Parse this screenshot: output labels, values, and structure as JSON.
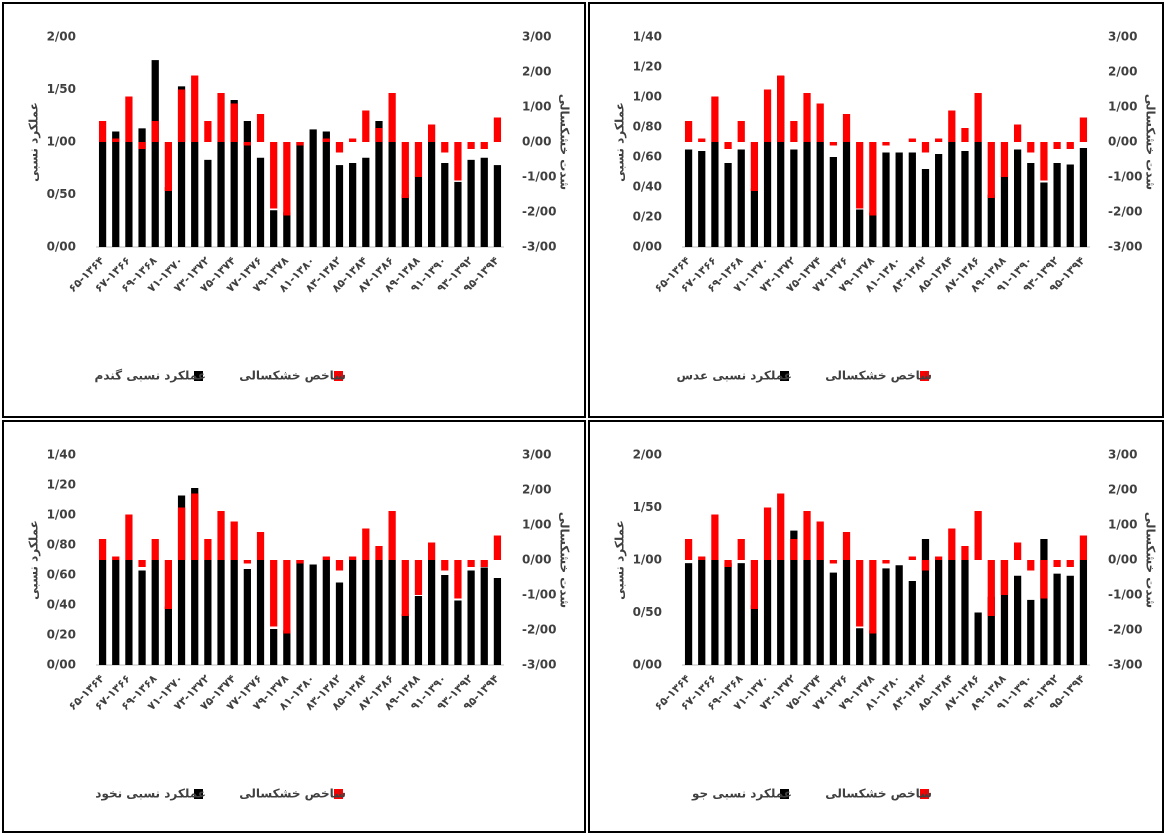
{
  "chart_data": [
    {
      "type": "bar",
      "categories": [
        "۶۵-۱۳۶۴",
        null,
        "۶۷-۱۳۶۶",
        null,
        "۶۹-۱۳۶۸",
        null,
        "۷۱-۱۳۷۰",
        null,
        "۷۳-۱۳۷۲",
        null,
        "۷۵-۱۳۷۴",
        null,
        "۷۷-۱۳۷۶",
        null,
        "۷۹-۱۳۷۸",
        null,
        "۸۱-۱۳۸۰",
        null,
        "۸۳-۱۳۸۲",
        null,
        "۸۵-۱۳۸۴",
        null,
        "۸۷-۱۳۸۶",
        null,
        "۸۹-۱۳۸۸",
        null,
        "۹۱-۱۳۹۰",
        null,
        "۹۳-۱۳۹۲",
        null,
        "۹۵-۱۳۹۴"
      ],
      "series": [
        {
          "name": "عملکرد نسبی گندم",
          "color": "#000000",
          "axis": "y",
          "values": [
            1.0,
            1.1,
            1.0,
            1.13,
            1.78,
            0.57,
            1.53,
            1.0,
            0.83,
            1.0,
            1.4,
            1.2,
            0.85,
            0.35,
            0.33,
            1.0,
            1.12,
            1.1,
            0.78,
            0.8,
            0.85,
            1.2,
            1.0,
            0.5,
            0.67,
            1.0,
            0.8,
            0.62,
            0.83,
            0.85,
            0.78
          ]
        },
        {
          "name": "شاخص خشکسالی",
          "color": "#ff0000",
          "axis": "y2",
          "values": [
            0.6,
            0.1,
            1.3,
            -0.2,
            0.6,
            -1.4,
            1.5,
            1.9,
            0.6,
            1.4,
            1.1,
            -0.1,
            0.8,
            -1.9,
            -2.1,
            -0.1,
            0,
            0.1,
            -0.3,
            0.1,
            0.9,
            0.4,
            1.4,
            -1.6,
            -1.0,
            0.5,
            -0.3,
            -1.1,
            -0.2,
            -0.2,
            0.7
          ]
        }
      ],
      "ylabel": "عملکرد نسبی",
      "y2label": "شدت خشکسالی",
      "ylim": [
        0,
        2
      ],
      "yticks": [
        {
          "value": 0,
          "label": "0/00"
        },
        {
          "value": 0.5,
          "label": "0/50"
        },
        {
          "value": 1,
          "label": "1/00"
        },
        {
          "value": 1.5,
          "label": "1/50"
        },
        {
          "value": 2,
          "label": "2/00"
        }
      ],
      "y2lim": [
        -3,
        3
      ],
      "y2ticks": [
        {
          "value": -3,
          "label": "-3/00"
        },
        {
          "value": -2,
          "label": "-2/00"
        },
        {
          "value": -1,
          "label": "-1/00"
        },
        {
          "value": 0,
          "label": "0/00"
        },
        {
          "value": 1,
          "label": "1/00"
        },
        {
          "value": 2,
          "label": "2/00"
        },
        {
          "value": 3,
          "label": "3/00"
        }
      ]
    },
    {
      "type": "bar",
      "categories": [
        "۶۵-۱۳۶۴",
        null,
        "۶۷-۱۳۶۶",
        null,
        "۶۹-۱۳۶۸",
        null,
        "۷۱-۱۳۷۰",
        null,
        "۷۳-۱۳۷۲",
        null,
        "۷۵-۱۳۷۴",
        null,
        "۷۷-۱۳۷۶",
        null,
        "۷۹-۱۳۷۸",
        null,
        "۸۱-۱۳۸۰",
        null,
        "۸۳-۱۳۸۲",
        null,
        "۸۵-۱۳۸۴",
        null,
        "۸۷-۱۳۸۶",
        null,
        "۸۹-۱۳۸۸",
        null,
        "۹۱-۱۳۹۰",
        null,
        "۹۳-۱۳۹۲",
        null,
        "۹۵-۱۳۹۴"
      ],
      "series": [
        {
          "name": "عملکرد نسبی عدس",
          "color": "#000000",
          "axis": "y",
          "values": [
            0.65,
            0.64,
            0.7,
            0.56,
            0.65,
            0.39,
            0.7,
            1.14,
            0.65,
            0.7,
            0.7,
            0.6,
            0.7,
            0.25,
            0.23,
            0.63,
            0.63,
            0.63,
            0.52,
            0.62,
            0.7,
            0.64,
            0.7,
            0.35,
            0.47,
            0.65,
            0.56,
            0.43,
            0.56,
            0.55,
            0.66
          ]
        },
        {
          "name": "شاخص خشکسالی",
          "color": "#ff0000",
          "axis": "y2",
          "values": [
            0.6,
            0.1,
            1.3,
            -0.2,
            0.6,
            -1.4,
            1.5,
            1.9,
            0.6,
            1.4,
            1.1,
            -0.1,
            0.8,
            -1.9,
            -2.1,
            -0.1,
            0,
            0.1,
            -0.3,
            0.1,
            0.9,
            0.4,
            1.4,
            -1.6,
            -1.0,
            0.5,
            -0.3,
            -1.1,
            -0.2,
            -0.2,
            0.7
          ]
        }
      ],
      "ylabel": "عملکرد نسبی",
      "y2label": "شدت خشکسالی",
      "ylim": [
        0,
        1.4
      ],
      "yticks": [
        {
          "value": 0,
          "label": "0/00"
        },
        {
          "value": 0.2,
          "label": "0/20"
        },
        {
          "value": 0.4,
          "label": "0/40"
        },
        {
          "value": 0.6,
          "label": "0/60"
        },
        {
          "value": 0.8,
          "label": "0/80"
        },
        {
          "value": 1,
          "label": "1/00"
        },
        {
          "value": 1.2,
          "label": "1/20"
        },
        {
          "value": 1.4,
          "label": "1/40"
        }
      ],
      "y2lim": [
        -3,
        3
      ],
      "y2ticks": [
        {
          "value": -3,
          "label": "-3/00"
        },
        {
          "value": -2,
          "label": "-2/00"
        },
        {
          "value": -1,
          "label": "-1/00"
        },
        {
          "value": 0,
          "label": "0/00"
        },
        {
          "value": 1,
          "label": "1/00"
        },
        {
          "value": 2,
          "label": "2/00"
        },
        {
          "value": 3,
          "label": "3/00"
        }
      ]
    },
    {
      "type": "bar",
      "categories": [
        "۶۵-۱۳۶۴",
        null,
        "۶۷-۱۳۶۶",
        null,
        "۶۹-۱۳۶۸",
        null,
        "۷۱-۱۳۷۰",
        null,
        "۷۳-۱۳۷۲",
        null,
        "۷۵-۱۳۷۴",
        null,
        "۷۷-۱۳۷۶",
        null,
        "۷۹-۱۳۷۸",
        null,
        "۸۱-۱۳۸۰",
        null,
        "۸۳-۱۳۸۲",
        null,
        "۸۵-۱۳۸۴",
        null,
        "۸۷-۱۳۸۶",
        null,
        "۸۹-۱۳۸۸",
        null,
        "۹۱-۱۳۹۰",
        null,
        "۹۳-۱۳۹۲",
        null,
        "۹۵-۱۳۹۴"
      ],
      "series": [
        {
          "name": "عملکرد نسبی نخود",
          "color": "#000000",
          "axis": "y",
          "values": [
            0.7,
            0.7,
            0.7,
            0.63,
            0.7,
            0.39,
            1.13,
            1.18,
            0.7,
            0.7,
            0.7,
            0.64,
            0.7,
            0.24,
            0.23,
            0.7,
            0.67,
            0.7,
            0.55,
            0.7,
            0.7,
            0.7,
            0.7,
            0.34,
            0.46,
            0.7,
            0.6,
            0.43,
            0.63,
            0.65,
            0.58
          ]
        },
        {
          "name": "شاخص خشکسالی",
          "color": "#ff0000",
          "axis": "y2",
          "values": [
            0.6,
            0.1,
            1.3,
            -0.2,
            0.6,
            -1.4,
            1.5,
            1.9,
            0.6,
            1.4,
            1.1,
            -0.1,
            0.8,
            -1.9,
            -2.1,
            -0.1,
            0,
            0.1,
            -0.3,
            0.1,
            0.9,
            0.4,
            1.4,
            -1.6,
            -1.0,
            0.5,
            -0.3,
            -1.1,
            -0.2,
            -0.2,
            0.7
          ]
        }
      ],
      "ylabel": "عملکرد نسبی",
      "y2label": "شدت خشکسالی",
      "ylim": [
        0,
        1.4
      ],
      "yticks": [
        {
          "value": 0,
          "label": "0/00"
        },
        {
          "value": 0.2,
          "label": "0/20"
        },
        {
          "value": 0.4,
          "label": "0/40"
        },
        {
          "value": 0.6,
          "label": "0/60"
        },
        {
          "value": 0.8,
          "label": "0/80"
        },
        {
          "value": 1,
          "label": "1/00"
        },
        {
          "value": 1.2,
          "label": "1/20"
        },
        {
          "value": 1.4,
          "label": "1/40"
        }
      ],
      "y2lim": [
        -3,
        3
      ],
      "y2ticks": [
        {
          "value": -3,
          "label": "-3/00"
        },
        {
          "value": -2,
          "label": "-2/00"
        },
        {
          "value": -1,
          "label": "-1/00"
        },
        {
          "value": 0,
          "label": "0/00"
        },
        {
          "value": 1,
          "label": "1/00"
        },
        {
          "value": 2,
          "label": "2/00"
        },
        {
          "value": 3,
          "label": "3/00"
        }
      ]
    },
    {
      "type": "bar",
      "categories": [
        "۶۵-۱۳۶۴",
        null,
        "۶۷-۱۳۶۶",
        null,
        "۶۹-۱۳۶۸",
        null,
        "۷۱-۱۳۷۰",
        null,
        "۷۳-۱۳۷۲",
        null,
        "۷۵-۱۳۷۴",
        null,
        "۷۷-۱۳۷۶",
        null,
        "۷۹-۱۳۷۸",
        null,
        "۸۱-۱۳۸۰",
        null,
        "۸۳-۱۳۸۲",
        null,
        "۸۵-۱۳۸۴",
        null,
        "۸۷-۱۳۸۶",
        null,
        "۸۹-۱۳۸۸",
        null,
        "۹۱-۱۳۹۰",
        null,
        "۹۳-۱۳۹۲",
        null,
        "۹۵-۱۳۹۴"
      ],
      "series": [
        {
          "name": "عملکرد نسبی جو",
          "color": "#000000",
          "axis": "y",
          "values": [
            0.97,
            1.0,
            1.0,
            0.97,
            0.97,
            0.57,
            1.0,
            1.0,
            1.28,
            1.0,
            1.0,
            0.88,
            1.0,
            0.35,
            0.33,
            0.92,
            0.95,
            0.8,
            1.2,
            1.0,
            1.0,
            1.0,
            0.5,
            0.65,
            1.0,
            0.85,
            0.62,
            1.2,
            0.87,
            0.85,
            1.0
          ]
        },
        {
          "name": "شاخص خشکسالی",
          "color": "#ff0000",
          "axis": "y2",
          "values": [
            0.6,
            0.1,
            1.3,
            -0.2,
            0.6,
            -1.4,
            1.5,
            1.9,
            0.6,
            1.4,
            1.1,
            -0.1,
            0.8,
            -1.9,
            -2.1,
            -0.1,
            0,
            0.1,
            -0.3,
            0.1,
            0.9,
            0.4,
            1.4,
            -1.6,
            -1.0,
            0.5,
            -0.3,
            -1.1,
            -0.2,
            -0.2,
            0.7
          ]
        }
      ],
      "ylabel": "عملکرد نسبی",
      "y2label": "شدت خشکسالی",
      "ylim": [
        0,
        2
      ],
      "yticks": [
        {
          "value": 0,
          "label": "0/00"
        },
        {
          "value": 0.5,
          "label": "0/50"
        },
        {
          "value": 1,
          "label": "1/00"
        },
        {
          "value": 1.5,
          "label": "1/50"
        },
        {
          "value": 2,
          "label": "2/00"
        }
      ],
      "y2lim": [
        -3,
        3
      ],
      "y2ticks": [
        {
          "value": -3,
          "label": "-3/00"
        },
        {
          "value": -2,
          "label": "-2/00"
        },
        {
          "value": -1,
          "label": "-1/00"
        },
        {
          "value": 0,
          "label": "0/00"
        },
        {
          "value": 1,
          "label": "1/00"
        },
        {
          "value": 2,
          "label": "2/00"
        },
        {
          "value": 3,
          "label": "3/00"
        }
      ]
    }
  ]
}
